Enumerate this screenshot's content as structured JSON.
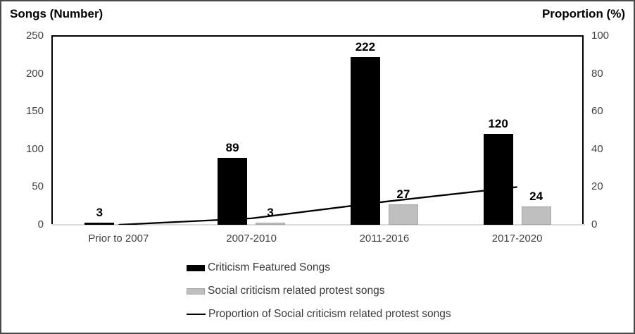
{
  "titles": {
    "left_axis": "Songs (Number)",
    "right_axis": "Proportion (%)"
  },
  "chart_data": {
    "type": "bar",
    "subtype": "combo-bar-line-dual-axis",
    "categories": [
      "Prior to 2007",
      "2007-2010",
      "2011-2016",
      "2017-2020"
    ],
    "series": [
      {
        "name": "Criticism Featured Songs",
        "type": "bar",
        "axis": "left",
        "color": "#000000",
        "values": [
          3,
          89,
          222,
          120
        ],
        "data_labels": [
          "3",
          "89",
          "222",
          "120"
        ]
      },
      {
        "name": "Social criticism related protest songs",
        "type": "bar",
        "axis": "left",
        "color": "#bfbfbf",
        "values": [
          null,
          3,
          27,
          24
        ],
        "data_labels": [
          "",
          "3",
          "27",
          "24"
        ]
      },
      {
        "name": "Proportion of Social criticism related protest songs",
        "type": "line",
        "axis": "right",
        "color": "#000000",
        "values": [
          0,
          3.4,
          12.2,
          20
        ]
      }
    ],
    "left_axis": {
      "title": "Songs (Number)",
      "min": 0,
      "max": 250,
      "ticks": [
        250,
        200,
        150,
        100,
        50,
        0
      ]
    },
    "right_axis": {
      "title": "Proportion (%)",
      "min": 0,
      "max": 100,
      "ticks": [
        100,
        80,
        60,
        40,
        20,
        0
      ]
    },
    "grid": false,
    "legend_position": "bottom"
  },
  "legend": {
    "items": [
      {
        "label": "Criticism Featured Songs",
        "marker": "black-square"
      },
      {
        "label": "Social criticism related protest songs",
        "marker": "gray-square"
      },
      {
        "label": "Proportion of Social criticism related protest songs",
        "marker": "black-line"
      }
    ]
  },
  "colors": {
    "bar_primary": "#000000",
    "bar_secondary": "#bfbfbf",
    "bar_secondary_border": "#a6a6a6",
    "line": "#000000",
    "axis_text": "#404040",
    "baseline": "#d9d9d9",
    "plot_border": "#000000",
    "frame_border": "#4a4a4a"
  }
}
